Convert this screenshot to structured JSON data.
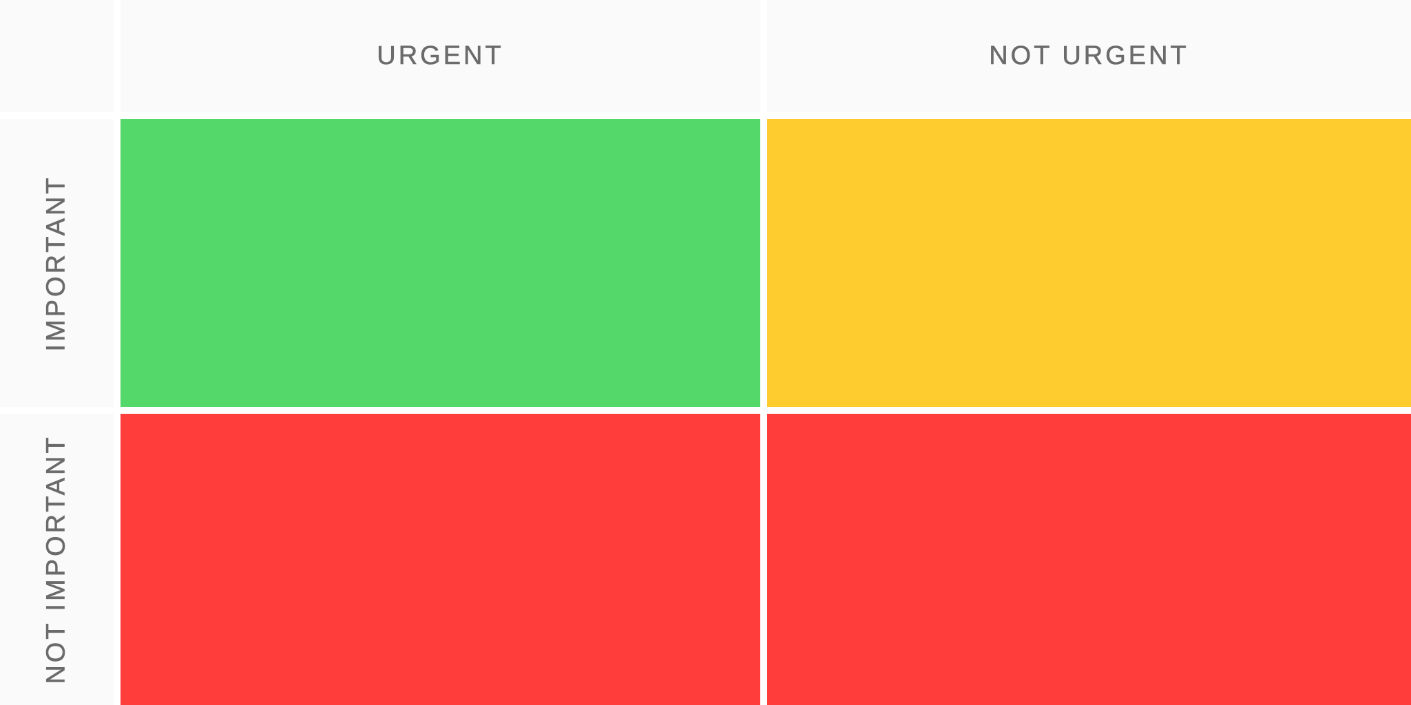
{
  "columns": {
    "urgent": "URGENT",
    "not_urgent": "NOT URGENT"
  },
  "rows": {
    "important": "IMPORTANT",
    "not_important": "NOT IMPORTANT"
  },
  "colors": {
    "header_bg": "#fafafa",
    "label_text": "#6b6b6b",
    "urgent_important": "#55d86a",
    "not_urgent_important": "#fecc2f",
    "urgent_not_important": "#ff3e3c",
    "not_urgent_not_important": "#ff3e3c"
  }
}
